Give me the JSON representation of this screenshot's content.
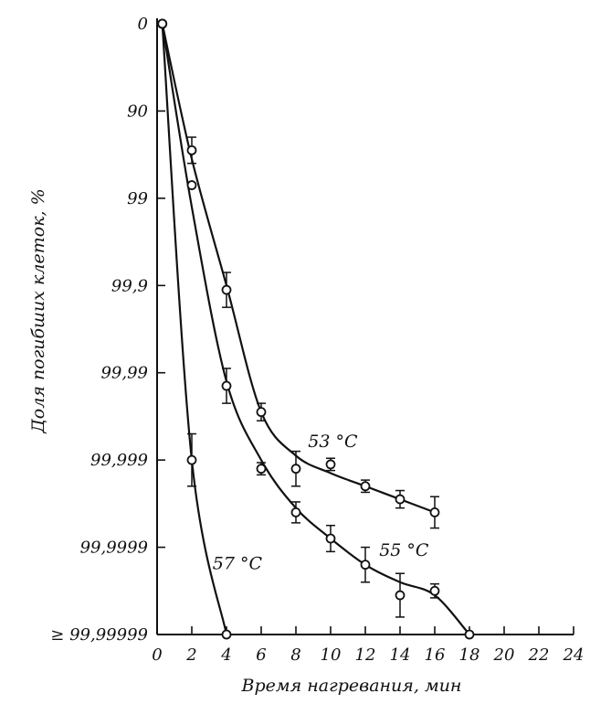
{
  "chart_data": {
    "type": "line",
    "xlabel": "Время нагревания, мин",
    "ylabel": "Доля погибших клеток, %",
    "x_ticks": [
      "0",
      "2",
      "4",
      "6",
      "8",
      "10",
      "12",
      "14",
      "16",
      "18",
      "20",
      "22",
      "24"
    ],
    "y_ticks": [
      "0",
      "90",
      "99",
      "99,9",
      "99,99",
      "99,999",
      "99,9999",
      "≥ 99,99999"
    ],
    "y_scale": "log survival (each tick = one tenfold decrease in surviving fraction)",
    "xlim": [
      0,
      24
    ],
    "ylim_log_reduction": [
      0,
      7
    ],
    "grid": false,
    "series": [
      {
        "name": "53 °C",
        "x": [
          0.3,
          2,
          2,
          4,
          6,
          8,
          10,
          12,
          14,
          16
        ],
        "log_reduction": [
          0,
          1.45,
          1.85,
          3.05,
          4.45,
          5.1,
          5.05,
          5.3,
          5.45,
          5.6
        ],
        "percent_killed": [
          "0",
          "96.5",
          "98.6",
          "99.91",
          "99.996",
          "99.9992",
          "99.9991",
          "99.9995",
          "99.9996",
          "99.9997"
        ],
        "err": [
          0,
          0.15,
          0,
          0.2,
          0.1,
          0.2,
          0.07,
          0.07,
          0.1,
          0.18
        ]
      },
      {
        "name": "55 °C",
        "x": [
          0.3,
          4,
          6,
          8,
          10,
          12,
          14,
          16,
          18
        ],
        "log_reduction": [
          0,
          4.15,
          5.1,
          5.6,
          5.9,
          6.2,
          6.55,
          6.5,
          7.0
        ],
        "percent_killed": [
          "0",
          "99.993",
          "99.9992",
          "99.9997",
          "99.99987",
          "99.99994",
          "99.99997",
          "99.99997",
          "≥ 99.99999"
        ],
        "err": [
          0,
          0.2,
          0.07,
          0.12,
          0.15,
          0.2,
          0.25,
          0.08,
          0
        ],
        "label_position": "right of curve near x=16"
      },
      {
        "name": "57 °C",
        "x": [
          0.3,
          2,
          4
        ],
        "log_reduction": [
          0,
          5.0,
          7.0
        ],
        "percent_killed": [
          "0",
          "99.999",
          "≥ 99.99999"
        ],
        "err": [
          0,
          0.3,
          0
        ]
      }
    ]
  }
}
